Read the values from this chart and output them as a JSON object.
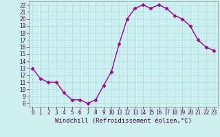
{
  "x": [
    0,
    1,
    2,
    3,
    4,
    5,
    6,
    7,
    8,
    9,
    10,
    11,
    12,
    13,
    14,
    15,
    16,
    17,
    18,
    19,
    20,
    21,
    22,
    23
  ],
  "y": [
    13,
    11.5,
    11,
    11,
    9.5,
    8.5,
    8.5,
    8,
    8.5,
    10.5,
    12.5,
    16.5,
    20,
    21.5,
    22,
    21.5,
    22,
    21.5,
    20.5,
    20,
    19,
    17,
    16,
    15.5
  ],
  "line_color": "#990099",
  "marker": "D",
  "markersize": 2.5,
  "linewidth": 1,
  "bg_color": "#cff0f0",
  "grid_color": "#aadddd",
  "xlabel": "Windchill (Refroidissement éolien,°C)",
  "xlabel_fontsize": 6.5,
  "tick_fontsize": 5.5,
  "xlim": [
    -0.5,
    23.5
  ],
  "ylim": [
    7.5,
    22.5
  ],
  "yticks": [
    8,
    9,
    10,
    11,
    12,
    13,
    14,
    15,
    16,
    17,
    18,
    19,
    20,
    21,
    22
  ],
  "xticks": [
    0,
    1,
    2,
    3,
    4,
    5,
    6,
    7,
    8,
    9,
    10,
    11,
    12,
    13,
    14,
    15,
    16,
    17,
    18,
    19,
    20,
    21,
    22,
    23
  ]
}
